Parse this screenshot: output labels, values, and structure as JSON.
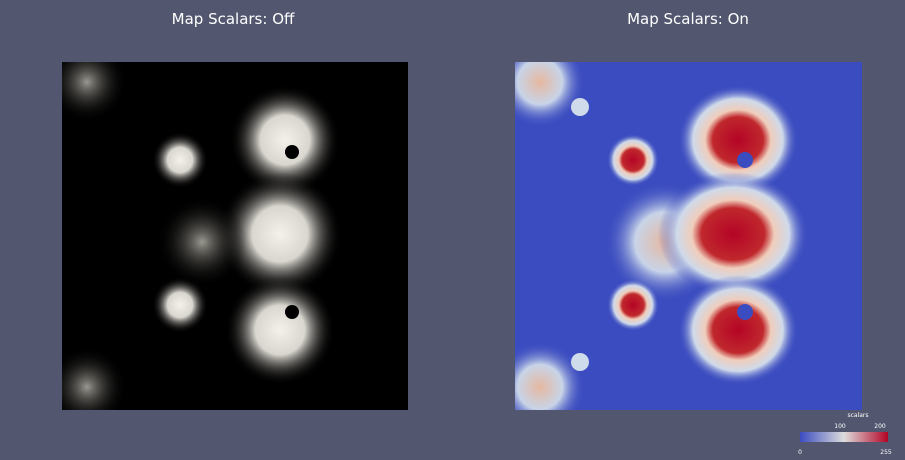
{
  "panels": [
    {
      "title": "Map Scalars: Off"
    },
    {
      "title": "Map Scalars: On"
    }
  ],
  "color_legend": {
    "title": "scalars",
    "labels": [
      0,
      100,
      200,
      255
    ]
  }
}
